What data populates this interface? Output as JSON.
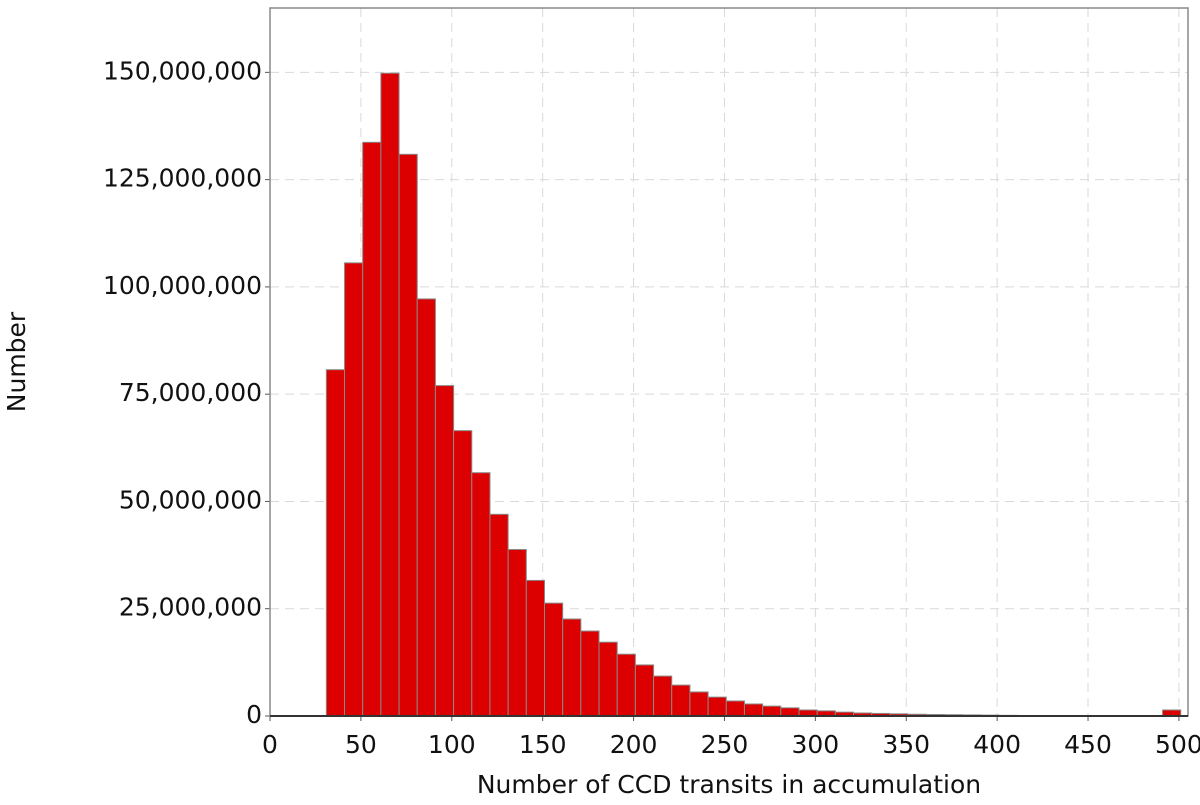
{
  "chart_data": {
    "type": "histogram",
    "xlabel": "Number of CCD transits in accumulation",
    "ylabel": "Number",
    "color": "#dd0000",
    "bins": [
      31,
      41,
      51,
      61,
      71,
      81,
      91,
      101,
      111,
      121,
      131,
      141,
      151,
      161,
      171,
      181,
      191,
      201,
      211,
      221,
      231,
      241,
      251,
      261,
      271,
      281,
      291,
      301,
      311,
      321,
      331,
      341,
      351,
      361,
      371,
      381,
      391,
      401,
      411,
      421,
      431,
      441,
      451,
      461,
      471,
      481,
      491,
      501
    ],
    "values": [
      80700000,
      105600000,
      133700000,
      149800000,
      130900000,
      97200000,
      77000000,
      66500000,
      56700000,
      47000000,
      38800000,
      31600000,
      26300000,
      22600000,
      19800000,
      17200000,
      14400000,
      11900000,
      9300000,
      7200000,
      5600000,
      4400000,
      3500000,
      2800000,
      2300000,
      1900000,
      1400000,
      1200000,
      900000,
      700000,
      600000,
      500000,
      400000,
      350000,
      300000,
      250000,
      200000,
      150000,
      120000,
      100000,
      80000,
      60000,
      50000,
      40000,
      30000,
      20000,
      1400000
    ],
    "xlim": [
      0,
      505
    ],
    "ylim": [
      0,
      165000000
    ],
    "xticks": [
      0,
      50,
      100,
      150,
      200,
      250,
      300,
      350,
      400,
      450,
      500
    ],
    "yticks": [
      0,
      {
        "value": 25000000,
        "label": "25,000,000"
      },
      {
        "value": 50000000,
        "label": "50,000,000"
      },
      {
        "value": 75000000,
        "label": "75,000,000"
      },
      {
        "value": 100000000,
        "label": "100,000,000"
      },
      {
        "value": 125000000,
        "label": "125,000,000"
      },
      {
        "value": 150000000,
        "label": "150,000,000"
      }
    ],
    "grid": true
  }
}
